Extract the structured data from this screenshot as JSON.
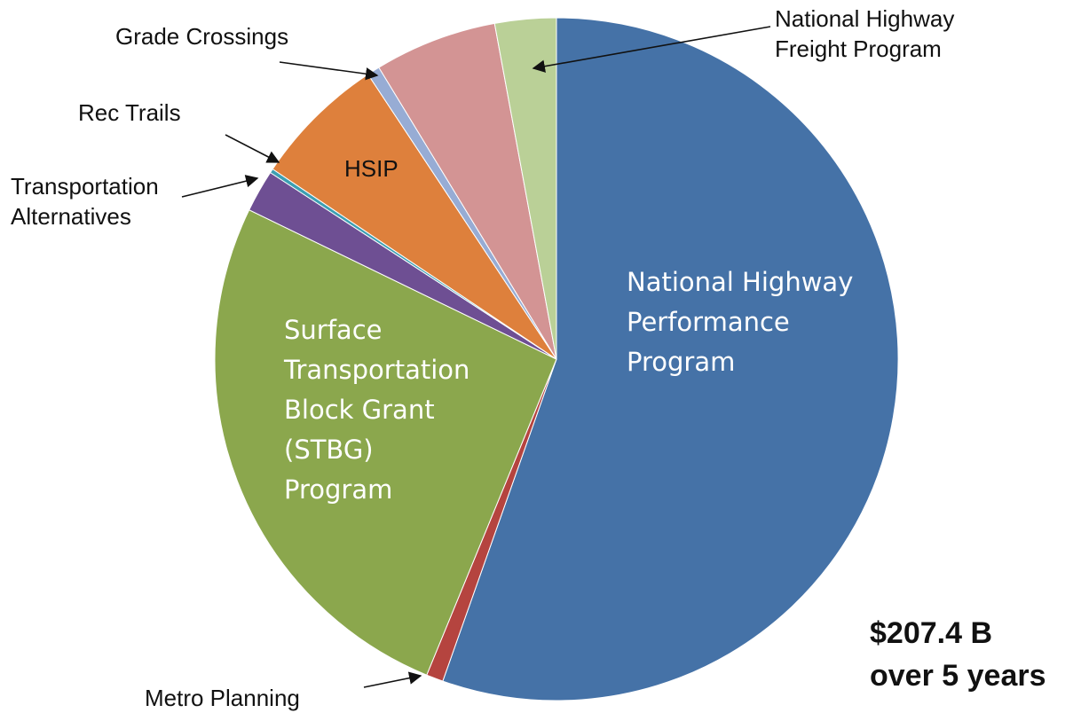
{
  "chart_data": {
    "type": "pie",
    "categories": [
      "National Highway\nPerformance\nProgram",
      "Metro Planning",
      "Surface\nTransportation\nBlock Grant\n(STBG)\nProgram",
      "Transportation\nAlternatives",
      "Rec Trails",
      "HSIP",
      "Grade Crossings",
      null,
      "National Highway\nFreight Program"
    ],
    "values": [
      55.4,
      0.8,
      26,
      2,
      0.2,
      6.3,
      0.6,
      5.8,
      2.9
    ],
    "colors": [
      "#4572a7",
      "#b5443f",
      "#8ba74d",
      "#6e4f93",
      "#3d9fb2",
      "#de803c",
      "#97acd4",
      "#d39494",
      "#bad097"
    ],
    "annotation": "$207.4 B\nover 5 years"
  }
}
